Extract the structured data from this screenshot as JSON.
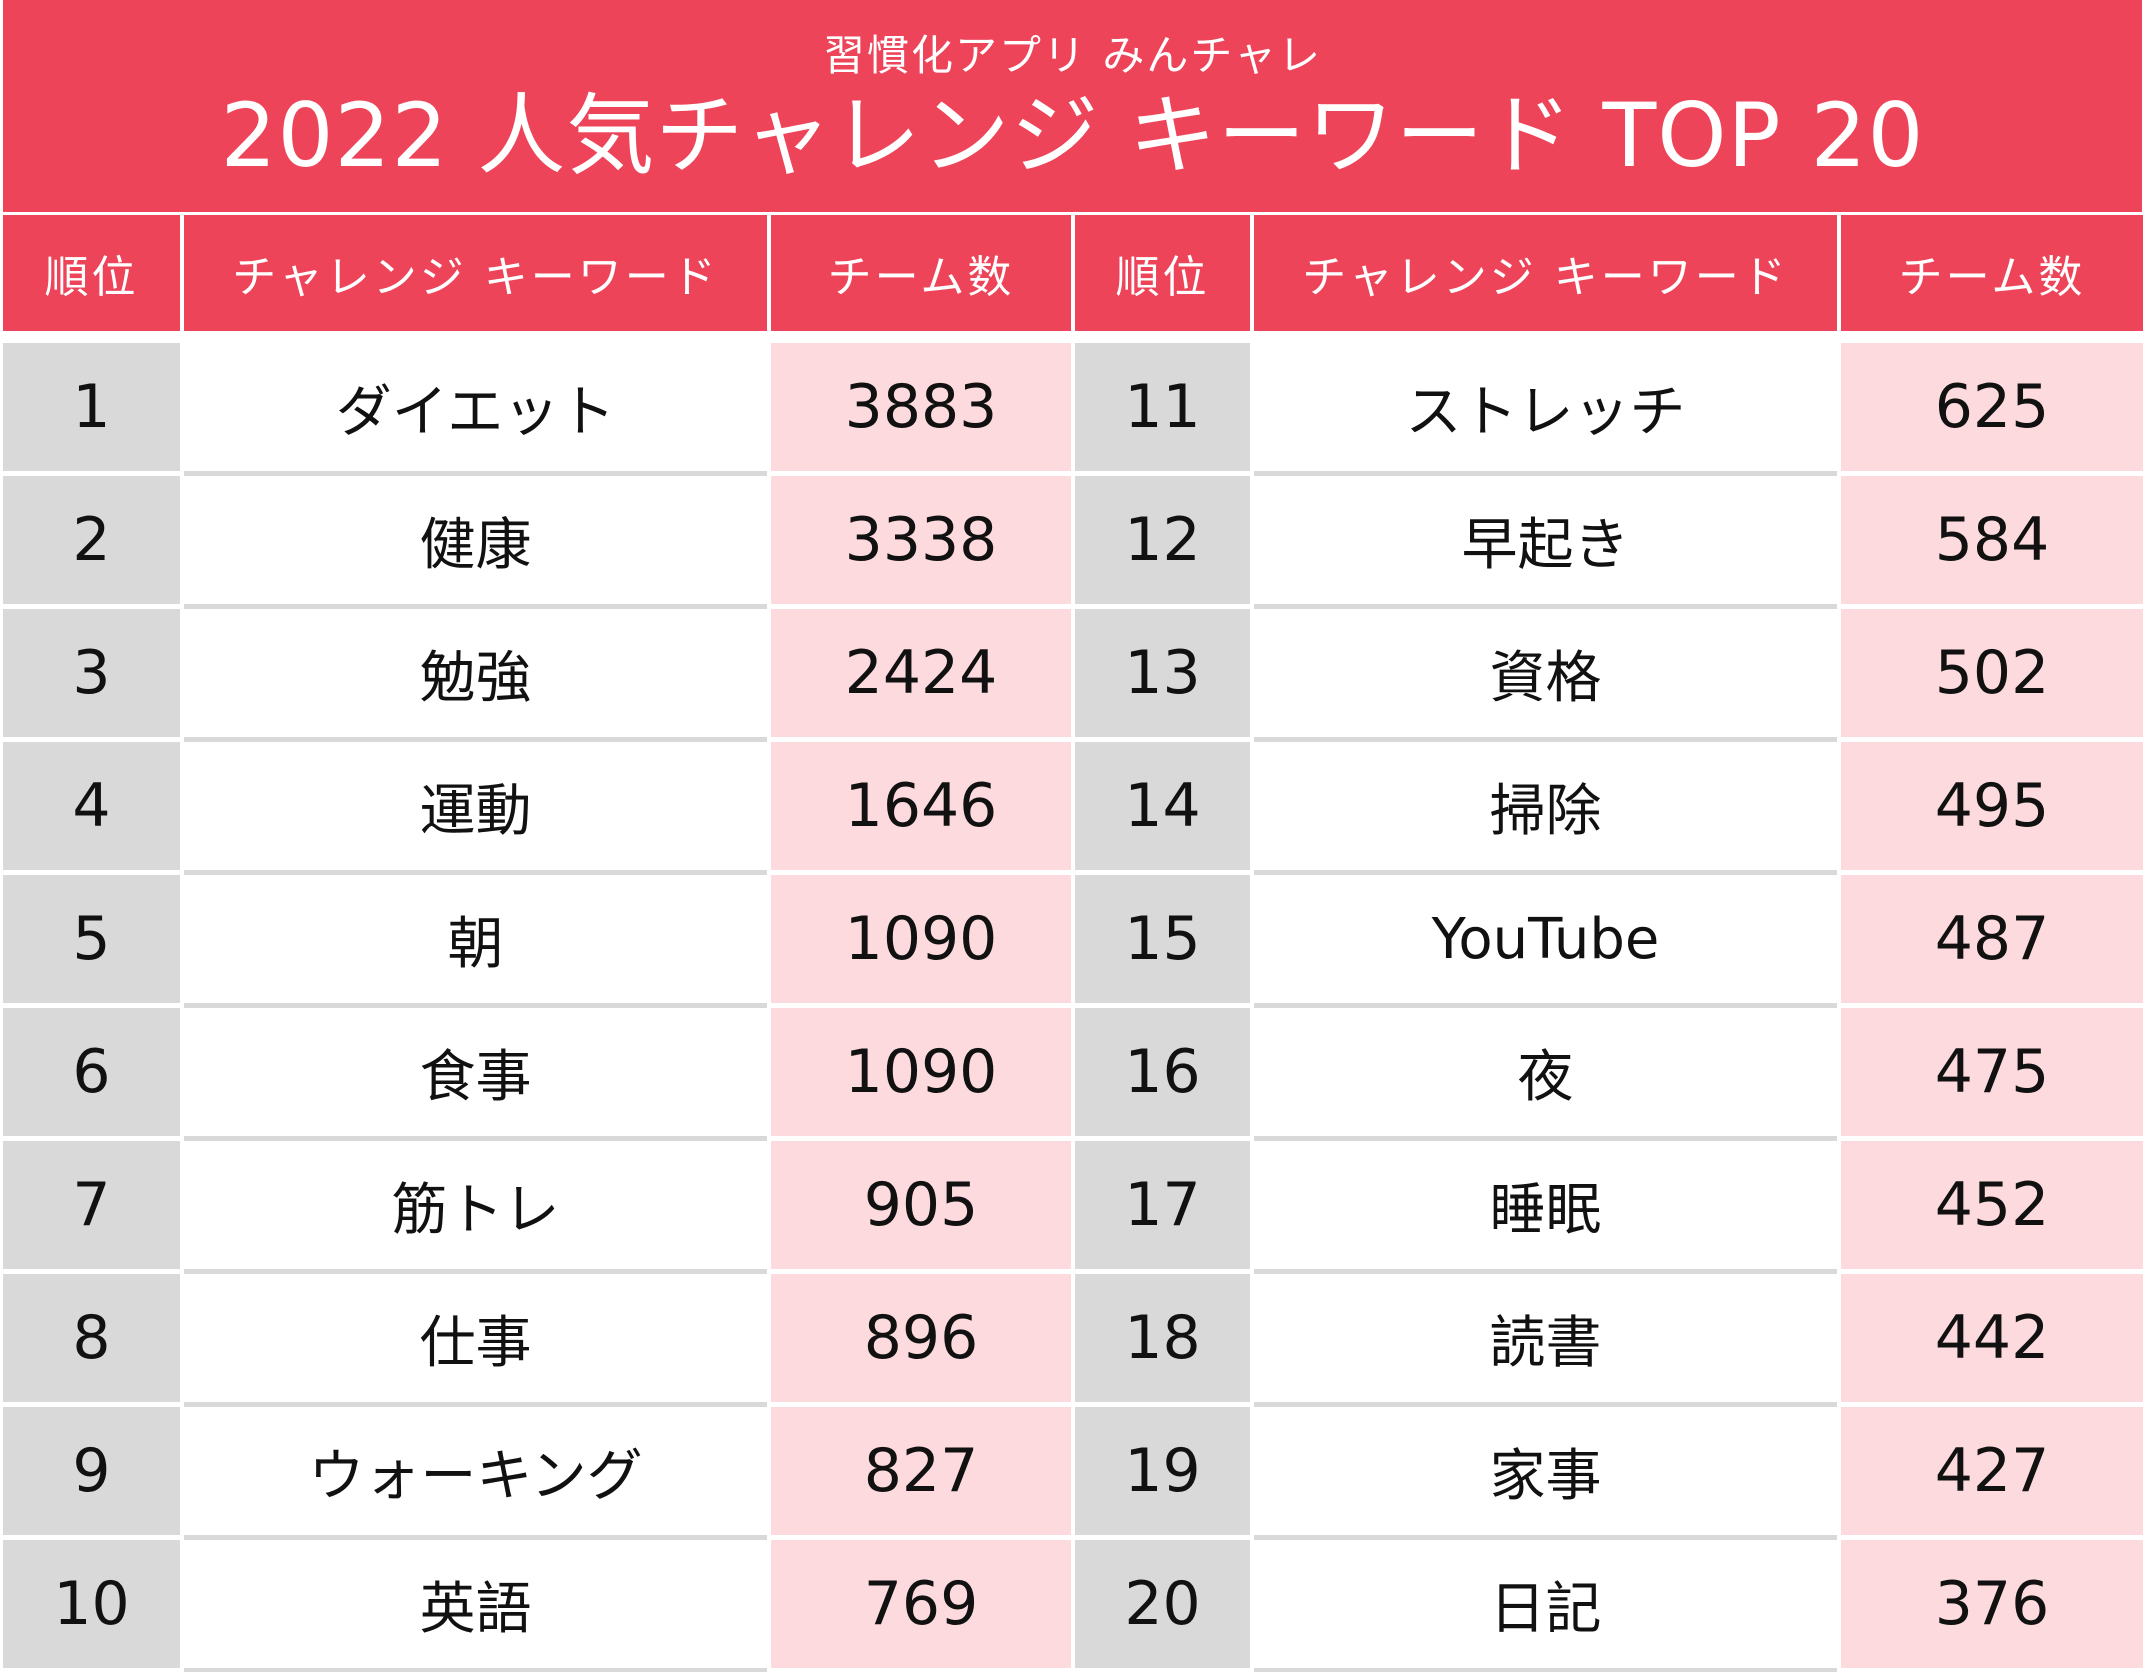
{
  "header": {
    "subtitle": "習慣化アプリ みんチャレ",
    "title": "2022 人気チャレンジ キーワード TOP 20"
  },
  "columns": {
    "rank": "順位",
    "keyword": "チャレンジ キーワード",
    "count": "チーム数"
  },
  "colors": {
    "accent": "#ee4459",
    "rank_bg": "#d9d9d9",
    "count_bg": "#fddadd"
  },
  "chart_data": {
    "type": "table",
    "title": "2022 人気チャレンジ キーワード TOP 20",
    "subtitle": "習慣化アプリ みんチャレ",
    "columns": [
      "順位",
      "チャレンジ キーワード",
      "チーム数"
    ],
    "rows": [
      {
        "rank": "1",
        "keyword": "ダイエット",
        "count": "3883"
      },
      {
        "rank": "2",
        "keyword": "健康",
        "count": "3338"
      },
      {
        "rank": "3",
        "keyword": "勉強",
        "count": "2424"
      },
      {
        "rank": "4",
        "keyword": "運動",
        "count": "1646"
      },
      {
        "rank": "5",
        "keyword": "朝",
        "count": "1090"
      },
      {
        "rank": "6",
        "keyword": "食事",
        "count": "1090"
      },
      {
        "rank": "7",
        "keyword": "筋トレ",
        "count": "905"
      },
      {
        "rank": "8",
        "keyword": "仕事",
        "count": "896"
      },
      {
        "rank": "9",
        "keyword": "ウォーキング",
        "count": "827"
      },
      {
        "rank": "10",
        "keyword": "英語",
        "count": "769"
      },
      {
        "rank": "11",
        "keyword": "ストレッチ",
        "count": "625"
      },
      {
        "rank": "12",
        "keyword": "早起き",
        "count": "584"
      },
      {
        "rank": "13",
        "keyword": "資格",
        "count": "502"
      },
      {
        "rank": "14",
        "keyword": "掃除",
        "count": "495"
      },
      {
        "rank": "15",
        "keyword": "YouTube",
        "count": "487"
      },
      {
        "rank": "16",
        "keyword": "夜",
        "count": "475"
      },
      {
        "rank": "17",
        "keyword": "睡眠",
        "count": "452"
      },
      {
        "rank": "18",
        "keyword": "読書",
        "count": "442"
      },
      {
        "rank": "19",
        "keyword": "家事",
        "count": "427"
      },
      {
        "rank": "20",
        "keyword": "日記",
        "count": "376"
      }
    ]
  }
}
